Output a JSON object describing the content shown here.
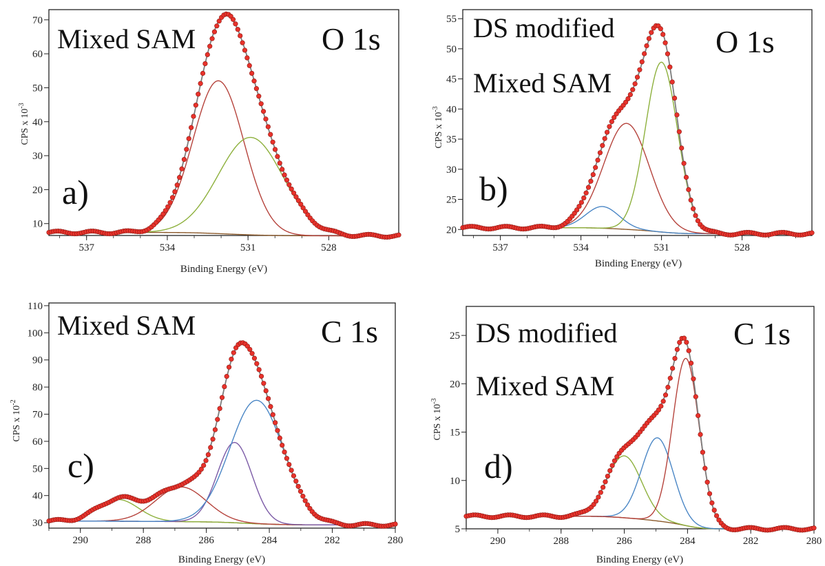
{
  "chart_data": [
    {
      "id": "a",
      "type": "line",
      "panel_label": "a)",
      "sample": [
        "Mixed SAM"
      ],
      "core_level": "O 1s",
      "xlabel": "Binding Energy (eV)",
      "ylabel": "CPS x 10",
      "ylabel_exp": "-3",
      "xlim": [
        538.4,
        525.4
      ],
      "ylim": [
        6.5,
        73
      ],
      "xticks": [
        537,
        534,
        531,
        528
      ],
      "yticks": [
        10,
        20,
        30,
        40,
        50,
        60,
        70
      ],
      "background": {
        "left": 7.4,
        "right": 6.4
      },
      "components": [
        {
          "color": "#b5423b",
          "center": 532.1,
          "height": 45.0,
          "sigma": 0.95
        },
        {
          "color": "#8db03c",
          "center": 530.9,
          "height": 28.7,
          "sigma": 1.2
        }
      ],
      "envelope_color": "#7d7d7d",
      "data_color": "#e8322b"
    },
    {
      "id": "b",
      "type": "line",
      "panel_label": "b)",
      "sample": [
        "DS modified",
        "Mixed SAM"
      ],
      "core_level": "O 1s",
      "xlabel": "Binding Energy (eV)",
      "ylabel": "CPS x 10",
      "ylabel_exp": "-3",
      "xlim": [
        538.4,
        525.4
      ],
      "ylim": [
        19,
        56.5
      ],
      "xticks": [
        537,
        534,
        531,
        528
      ],
      "yticks": [
        20,
        25,
        30,
        35,
        40,
        45,
        50,
        55
      ],
      "background": {
        "left": 20.3,
        "right": 19.3
      },
      "components": [
        {
          "color": "#4a86c5",
          "center": 533.2,
          "height": 3.6,
          "sigma": 0.62
        },
        {
          "color": "#b5423b",
          "center": 532.3,
          "height": 17.6,
          "sigma": 0.85
        },
        {
          "color": "#8db03c",
          "center": 531.0,
          "height": 28.2,
          "sigma": 0.6
        }
      ],
      "envelope_color": "#7d7d7d",
      "data_color": "#e8322b"
    },
    {
      "id": "c",
      "type": "line",
      "panel_label": "c)",
      "sample": [
        "Mixed SAM"
      ],
      "core_level": "C 1s",
      "xlabel": "Binding Energy (eV)",
      "ylabel": "CPS x 10",
      "ylabel_exp": "-2",
      "xlim": [
        291,
        280
      ],
      "ylim": [
        28,
        111
      ],
      "xticks": [
        290,
        288,
        286,
        284,
        282,
        280
      ],
      "yticks": [
        30,
        40,
        50,
        60,
        70,
        80,
        90,
        100,
        110
      ],
      "background": {
        "left": 30.6,
        "right": 29.2
      },
      "components": [
        {
          "color": "#8db03c",
          "center": 288.8,
          "height": 8.0,
          "sigma": 0.65
        },
        {
          "color": "#b5423b",
          "center": 286.8,
          "height": 12.8,
          "sigma": 0.8
        },
        {
          "color": "#7b5aa6",
          "center": 285.1,
          "height": 29.6,
          "sigma": 0.55
        },
        {
          "color": "#4a86c5",
          "center": 284.4,
          "height": 45.5,
          "sigma": 0.85
        }
      ],
      "envelope_color": "#7d7d7d",
      "data_color": "#e8322b"
    },
    {
      "id": "d",
      "type": "line",
      "panel_label": "d)",
      "sample": [
        "DS modified",
        "Mixed SAM"
      ],
      "core_level": "C 1s",
      "xlabel": "Binding Energy (eV)",
      "ylabel": "CPS x 10",
      "ylabel_exp": "-3",
      "xlim": [
        291,
        280
      ],
      "ylim": [
        5,
        28
      ],
      "xticks": [
        290,
        288,
        286,
        284,
        282,
        280
      ],
      "yticks": [
        5,
        10,
        15,
        20,
        25
      ],
      "background": {
        "left": 6.3,
        "right": 5.0
      },
      "components": [
        {
          "color": "#8db03c",
          "center": 286.0,
          "height": 6.4,
          "sigma": 0.55
        },
        {
          "color": "#4a86c5",
          "center": 284.95,
          "height": 8.6,
          "sigma": 0.5
        },
        {
          "color": "#b5423b",
          "center": 284.05,
          "height": 17.3,
          "sigma": 0.42
        }
      ],
      "envelope_color": "#7d7d7d",
      "data_color": "#e8322b"
    }
  ]
}
